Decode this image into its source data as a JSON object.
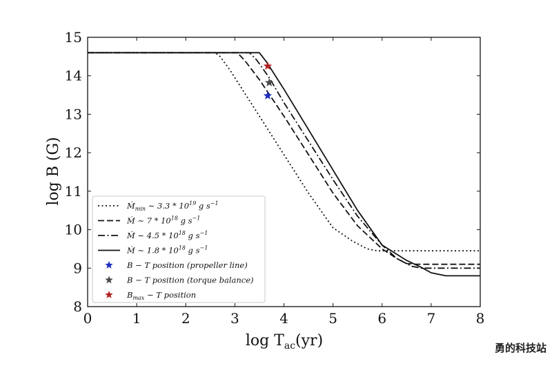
{
  "chart_data": {
    "type": "line",
    "title": "",
    "xlabel": "log T",
    "xlabel_sub": "ac",
    "xlabel_unit": "(yr)",
    "ylabel": "log B (G)",
    "xlim": [
      0,
      8
    ],
    "ylim": [
      8,
      15
    ],
    "xticks": [
      "0",
      "1",
      "2",
      "3",
      "4",
      "5",
      "6",
      "7",
      "8"
    ],
    "yticks": [
      "8",
      "9",
      "10",
      "11",
      "12",
      "13",
      "14",
      "15"
    ],
    "grid": false,
    "legend_position": "lower-left",
    "series": [
      {
        "name": "Ṁmin ∼ 3.3 * 10^19 g s^-1",
        "legend_parts": {
          "main": "Ṁ",
          "sub": "min",
          "mid": " ∼ 3.3 * 10",
          "sup": "19",
          "unit": " g s",
          "unit_sup": "−1"
        },
        "style": "dotted",
        "x": [
          0,
          2.6,
          2.7,
          2.9,
          3.2,
          3.6,
          4.0,
          4.5,
          5.0,
          5.4,
          5.7,
          5.9,
          6.0,
          6.2,
          8.0
        ],
        "y": [
          14.6,
          14.6,
          14.5,
          14.15,
          13.55,
          12.75,
          11.95,
          10.95,
          10.05,
          9.7,
          9.5,
          9.45,
          9.45,
          9.45,
          9.45
        ]
      },
      {
        "name": "Ṁ ∼ 7 * 10^18 g s^-1",
        "legend_parts": {
          "main": "Ṁ",
          "sub": "",
          "mid": " ∼ 7 * 10",
          "sup": "18",
          "unit": " g s",
          "unit_sup": "−1"
        },
        "style": "dashed",
        "x": [
          0,
          3.05,
          3.2,
          3.5,
          4.0,
          4.5,
          5.0,
          5.5,
          6.0,
          6.3,
          6.5,
          6.7,
          8.0
        ],
        "y": [
          14.6,
          14.6,
          14.4,
          13.9,
          12.95,
          11.95,
          10.95,
          10.1,
          9.5,
          9.25,
          9.12,
          9.1,
          9.1
        ]
      },
      {
        "name": "Ṁ ∼ 4.5 * 10^18 g s^-1",
        "legend_parts": {
          "main": "Ṁ",
          "sub": "",
          "mid": " ∼ 4.5 * 10",
          "sup": "18",
          "unit": " g s",
          "unit_sup": "−1"
        },
        "style": "dashdot",
        "x": [
          0,
          3.3,
          3.45,
          3.7,
          4.0,
          4.5,
          5.0,
          5.5,
          6.0,
          6.3,
          6.6,
          6.8,
          8.0
        ],
        "y": [
          14.6,
          14.6,
          14.4,
          13.95,
          13.3,
          12.3,
          11.3,
          10.35,
          9.6,
          9.25,
          9.05,
          9.0,
          9.0
        ]
      },
      {
        "name": "Ṁ ∼ 1.8 * 10^18 g s^-1",
        "legend_parts": {
          "main": "Ṁ",
          "sub": "",
          "mid": " ∼ 1.8 * 10",
          "sup": "18",
          "unit": " g s",
          "unit_sup": "−1"
        },
        "style": "solid",
        "x": [
          0,
          3.5,
          3.65,
          4.0,
          4.5,
          5.0,
          5.5,
          6.0,
          6.5,
          6.8,
          7.0,
          7.3,
          8.0
        ],
        "y": [
          14.6,
          14.6,
          14.35,
          13.65,
          12.6,
          11.55,
          10.5,
          9.6,
          9.2,
          9.02,
          8.88,
          8.8,
          8.8
        ]
      }
    ],
    "markers": [
      {
        "name": "B − T position (propeller line)",
        "legend_parts": {
          "main": "B − T position (propeller line)",
          "sub": ""
        },
        "color": "#1f2fbf",
        "x": 3.67,
        "y": 13.48
      },
      {
        "name": "B − T position (torque balance)",
        "legend_parts": {
          "main": "B − T position (torque balance)",
          "sub": ""
        },
        "color": "#4a4a4a",
        "x": 3.7,
        "y": 13.82
      },
      {
        "name": "Bmax − T position",
        "legend_parts": {
          "main": "B",
          "sub": "max",
          "rest": " − T position"
        },
        "color": "#b22222",
        "x": 3.67,
        "y": 14.25
      }
    ]
  },
  "watermark": "勇的科技站"
}
